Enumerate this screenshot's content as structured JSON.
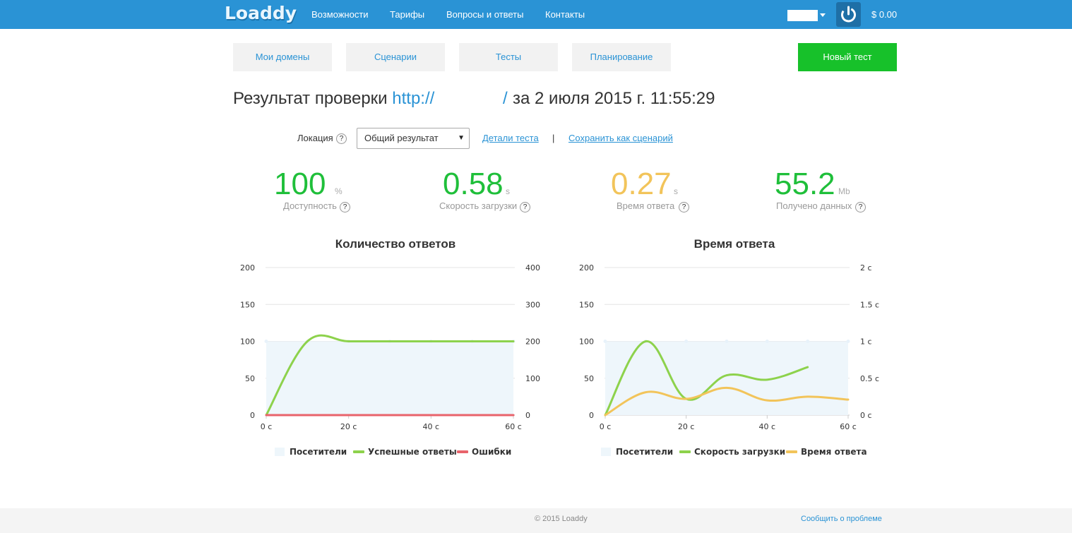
{
  "header": {
    "logo": "Loaddy",
    "nav": [
      "Возможности",
      "Тарифы",
      "Вопросы и ответы",
      "Контакты"
    ],
    "balance": "$ 0.00",
    "power_icon": "power-icon"
  },
  "tabs": [
    "Мои домены",
    "Сценарии",
    "Тесты",
    "Планирование"
  ],
  "new_test_label": "Новый тест",
  "result": {
    "prefix": "Результат проверки",
    "url": "http://",
    "slash": "/",
    "date": "за 2 июля 2015 г. 11:55:29"
  },
  "location": {
    "label": "Локация",
    "selected": "Общий результат",
    "details_link": "Детали теста",
    "separator": "|",
    "save_link": "Сохранить как сценарий"
  },
  "help_glyph": "?",
  "metrics": [
    {
      "value": "100",
      "unit": "%",
      "label": "Доступность",
      "color": "#1fbf3a"
    },
    {
      "value": "0.58",
      "unit": "s",
      "label": "Скорость загрузки",
      "color": "#1fbf3a"
    },
    {
      "value": "0.27",
      "unit": "s",
      "label": "Время ответа",
      "color": "#f2c45a"
    },
    {
      "value": "55.2",
      "unit": "Mb",
      "label": "Получено данных",
      "color": "#1fbf3a"
    }
  ],
  "chart_data": [
    {
      "type": "line",
      "title": "Количество ответов",
      "x_ticks": [
        "0 с",
        "20 с",
        "40 с",
        "60 с"
      ],
      "y_left_ticks": [
        "0",
        "50",
        "100",
        "150",
        "200"
      ],
      "y_right_ticks": [
        "0",
        "100",
        "200",
        "300",
        "400"
      ],
      "ylim_left": [
        0,
        200
      ],
      "ylim_right": [
        0,
        400
      ],
      "xlim": [
        0,
        60
      ],
      "grid": true,
      "legend_position": "bottom",
      "series": [
        {
          "name": "Посетители",
          "kind": "area",
          "axis": "left",
          "color": "#eef6fb",
          "x": [
            0,
            10,
            20,
            30,
            40,
            50,
            60
          ],
          "values": [
            100,
            100,
            100,
            100,
            100,
            100,
            100
          ]
        },
        {
          "name": "Успешные ответы",
          "kind": "line",
          "axis": "right",
          "color": "#8dd24c",
          "x": [
            0,
            10,
            20,
            30,
            40,
            50,
            60
          ],
          "values": [
            0,
            200,
            200,
            200,
            200,
            200,
            200
          ]
        },
        {
          "name": "Ошибки",
          "kind": "line",
          "axis": "right",
          "color": "#e8636b",
          "x": [
            0,
            10,
            20,
            30,
            40,
            50,
            60
          ],
          "values": [
            0,
            0,
            0,
            0,
            0,
            0,
            0
          ]
        }
      ]
    },
    {
      "type": "line",
      "title": "Время ответа",
      "x_ticks": [
        "0 с",
        "20 с",
        "40 с",
        "60 с"
      ],
      "y_left_ticks": [
        "0",
        "50",
        "100",
        "150",
        "200"
      ],
      "y_right_ticks": [
        "0 с",
        "0.5 с",
        "1 с",
        "1.5 с",
        "2 с"
      ],
      "ylim_left": [
        0,
        200
      ],
      "ylim_right": [
        0,
        2
      ],
      "xlim": [
        0,
        60
      ],
      "grid": true,
      "legend_position": "bottom",
      "series": [
        {
          "name": "Посетители",
          "kind": "area",
          "axis": "left",
          "color": "#eef6fb",
          "x": [
            0,
            10,
            20,
            30,
            40,
            50,
            60
          ],
          "values": [
            100,
            100,
            100,
            100,
            100,
            100,
            100
          ]
        },
        {
          "name": "Скорость загрузки",
          "kind": "line",
          "axis": "right",
          "color": "#8dd24c",
          "x": [
            0,
            10,
            20,
            30,
            40,
            50
          ],
          "values": [
            0,
            1.0,
            0.22,
            0.54,
            0.48,
            0.65
          ]
        },
        {
          "name": "Время ответа",
          "kind": "line",
          "axis": "right",
          "color": "#f2c45a",
          "x": [
            0,
            10,
            20,
            30,
            40,
            50,
            60
          ],
          "values": [
            0,
            0.31,
            0.22,
            0.37,
            0.2,
            0.25,
            0.21
          ]
        }
      ]
    }
  ],
  "footer": {
    "copyright": "© 2015 Loaddy",
    "report": "Сообщить о проблеме"
  }
}
